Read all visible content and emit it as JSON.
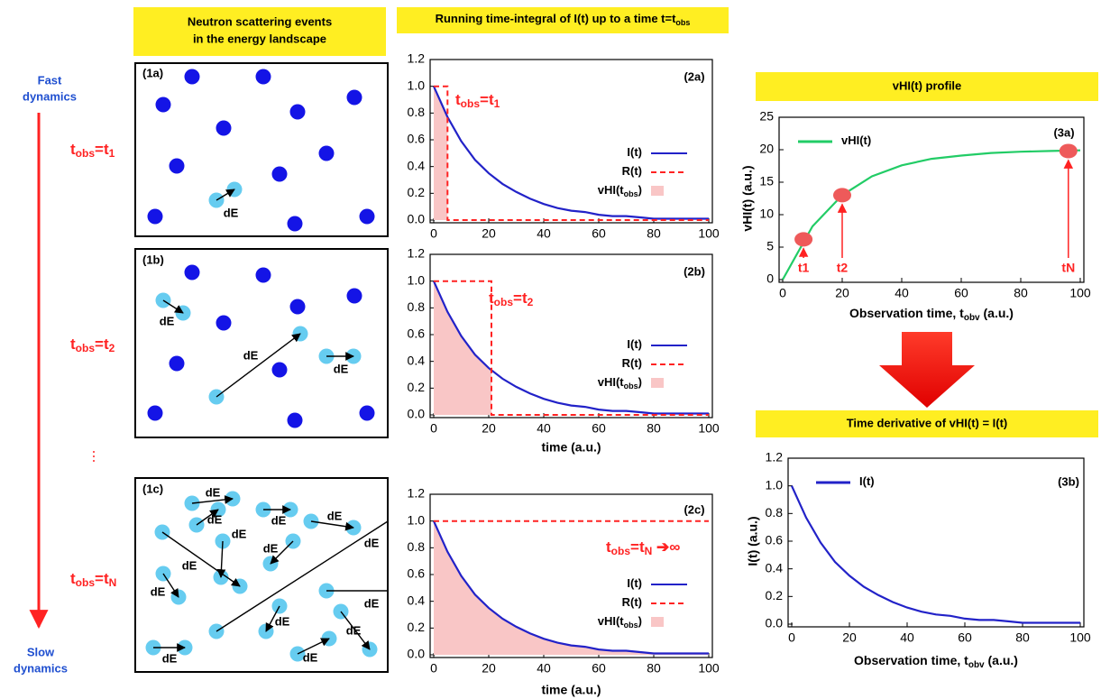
{
  "left": {
    "fast_label": [
      "Fast",
      "dynamics"
    ],
    "slow_label": [
      "Slow",
      "dynamics"
    ],
    "tobs_labels": [
      [
        {
          "t": "t"
        },
        {
          "s": "obs"
        },
        {
          "t": "=t"
        },
        {
          "s": "1"
        }
      ],
      [
        {
          "t": "t"
        },
        {
          "s": "obs"
        },
        {
          "t": "=t"
        },
        {
          "s": "2"
        }
      ],
      [
        {
          "t": "t"
        },
        {
          "s": "obs"
        },
        {
          "t": "=t"
        },
        {
          "s": "N"
        }
      ]
    ]
  },
  "headers": {
    "scattering": [
      "Neutron scattering events",
      "in the energy landscape"
    ],
    "integral": [
      {
        "t": "Running time-integral of I(t) up to a time t=t"
      },
      {
        "s": "obs"
      }
    ],
    "profile": "vHI(t) profile",
    "derivative": "Time derivative of vHI(t) = I(t)"
  },
  "diagram": {
    "panels": [
      "(1a)",
      "(1b)",
      "(1c)"
    ],
    "dE_label": "dE"
  },
  "chart_data": [
    {
      "type": "line",
      "panel_label": "(2a)",
      "annotation": [
        {
          "t": "t"
        },
        {
          "s": "obs"
        },
        {
          "t": "=t"
        },
        {
          "s": "1"
        }
      ],
      "xlim": [
        0,
        100
      ],
      "xticks": [
        0,
        20,
        40,
        60,
        80,
        100
      ],
      "ylim": [
        0,
        1.2
      ],
      "yticks": [
        {
          "value": 0,
          "label": "0.0"
        },
        0.2,
        0.4,
        0.6,
        0.8,
        {
          "value": 1,
          "label": "1.0"
        },
        1.2
      ],
      "legend": "center right",
      "series": [
        {
          "name": [
            {
              "t": "I(t)"
            }
          ],
          "color": "#2222c8",
          "style": "solid",
          "x": [
            0,
            5,
            10,
            15,
            20,
            25,
            30,
            35,
            40,
            45,
            50,
            55,
            60,
            65,
            70,
            75,
            80,
            85,
            90,
            95,
            100
          ],
          "values": [
            1,
            0.77,
            0.59,
            0.45,
            0.35,
            0.27,
            0.21,
            0.16,
            0.12,
            0.09,
            0.07,
            0.06,
            0.04,
            0.03,
            0.03,
            0.02,
            0.01,
            0.01,
            0.01,
            0.01,
            0.01
          ]
        },
        {
          "name": [
            {
              "t": "R(t)"
            }
          ],
          "color": "#ff2222",
          "style": "dashed",
          "x": [
            0,
            5,
            5,
            100
          ],
          "values": [
            1,
            1,
            0,
            0
          ]
        },
        {
          "name": [
            {
              "t": "vHI(t"
            },
            {
              "s": "obs"
            },
            {
              "t": ")"
            }
          ],
          "color": "#f9c6c6",
          "style": "area",
          "x": [
            0,
            5
          ],
          "values": [
            1,
            0.77
          ]
        }
      ]
    },
    {
      "type": "line",
      "panel_label": "(2b)",
      "annotation": [
        {
          "t": "t"
        },
        {
          "s": "obs"
        },
        {
          "t": "=t"
        },
        {
          "s": "2"
        }
      ],
      "xlabel": "time (a.u.)",
      "xlim": [
        0,
        100
      ],
      "xticks": [
        0,
        20,
        40,
        60,
        80,
        100
      ],
      "ylim": [
        0,
        1.2
      ],
      "yticks": [
        {
          "value": 0,
          "label": "0.0"
        },
        0.2,
        0.4,
        0.6,
        0.8,
        {
          "value": 1,
          "label": "1.0"
        },
        1.2
      ],
      "legend": "center right",
      "series": [
        {
          "name": [
            {
              "t": "I(t)"
            }
          ],
          "color": "#2222c8",
          "style": "solid",
          "x": [
            0,
            5,
            10,
            15,
            20,
            25,
            30,
            35,
            40,
            45,
            50,
            55,
            60,
            65,
            70,
            75,
            80,
            85,
            90,
            95,
            100
          ],
          "values": [
            1,
            0.77,
            0.59,
            0.45,
            0.35,
            0.27,
            0.21,
            0.16,
            0.12,
            0.09,
            0.07,
            0.06,
            0.04,
            0.03,
            0.03,
            0.02,
            0.01,
            0.01,
            0.01,
            0.01,
            0.01
          ]
        },
        {
          "name": [
            {
              "t": "R(t)"
            }
          ],
          "color": "#ff2222",
          "style": "dashed",
          "x": [
            0,
            21,
            21,
            100
          ],
          "values": [
            1,
            1,
            0,
            0
          ]
        },
        {
          "name": [
            {
              "t": "vHI(t"
            },
            {
              "s": "obs"
            },
            {
              "t": ")"
            }
          ],
          "color": "#f9c6c6",
          "style": "area",
          "x": [
            0,
            5,
            10,
            15,
            20,
            21
          ],
          "values": [
            1,
            0.77,
            0.59,
            0.45,
            0.35,
            0.33
          ]
        }
      ]
    },
    {
      "type": "line",
      "panel_label": "(2c)",
      "annotation": [
        {
          "t": "t"
        },
        {
          "s": "obs"
        },
        {
          "t": "=t"
        },
        {
          "s": "N"
        },
        {
          "t": " ➔∞"
        }
      ],
      "xlabel": "time (a.u.)",
      "xlim": [
        0,
        100
      ],
      "xticks": [
        0,
        20,
        40,
        60,
        80,
        100
      ],
      "ylim": [
        0,
        1.2
      ],
      "yticks": [
        {
          "value": 0,
          "label": "0.0"
        },
        0.2,
        0.4,
        0.6,
        0.8,
        {
          "value": 1,
          "label": "1.0"
        },
        1.2
      ],
      "legend": "center right",
      "series": [
        {
          "name": [
            {
              "t": "I(t)"
            }
          ],
          "color": "#2222c8",
          "style": "solid",
          "x": [
            0,
            5,
            10,
            15,
            20,
            25,
            30,
            35,
            40,
            45,
            50,
            55,
            60,
            65,
            70,
            75,
            80,
            85,
            90,
            95,
            100
          ],
          "values": [
            1,
            0.77,
            0.59,
            0.45,
            0.35,
            0.27,
            0.21,
            0.16,
            0.12,
            0.09,
            0.07,
            0.06,
            0.04,
            0.03,
            0.03,
            0.02,
            0.01,
            0.01,
            0.01,
            0.01,
            0.01
          ]
        },
        {
          "name": [
            {
              "t": "R(t)"
            }
          ],
          "color": "#ff2222",
          "style": "dashed",
          "x": [
            0,
            100
          ],
          "values": [
            1,
            1
          ]
        },
        {
          "name": [
            {
              "t": "vHI(t"
            },
            {
              "s": "obs"
            },
            {
              "t": ")"
            }
          ],
          "color": "#f9c6c6",
          "style": "area",
          "x": [
            0,
            5,
            10,
            15,
            20,
            25,
            30,
            35,
            40,
            45,
            50,
            55,
            60,
            65,
            70,
            75,
            80,
            85,
            90,
            95,
            100
          ],
          "values": [
            1,
            0.77,
            0.59,
            0.45,
            0.35,
            0.27,
            0.21,
            0.16,
            0.12,
            0.09,
            0.07,
            0.06,
            0.04,
            0.03,
            0.03,
            0.02,
            0.01,
            0.01,
            0.01,
            0.01,
            0.01
          ]
        }
      ]
    },
    {
      "type": "line",
      "panel_label": "(3a)",
      "ylabel": "vHI(t) (a.u.)",
      "xlabel": [
        {
          "t": "Observation time, t"
        },
        {
          "s": "obv"
        },
        {
          "t": " (a.u.)"
        }
      ],
      "xlim": [
        0,
        100
      ],
      "xticks": [
        0,
        20,
        40,
        60,
        80,
        100
      ],
      "ylim": [
        0,
        25
      ],
      "yticks": [
        0,
        5,
        10,
        15,
        20,
        25
      ],
      "legend": "upper left",
      "series": [
        {
          "name": [
            {
              "t": "vHI(t)"
            }
          ],
          "color": "#22cc66",
          "style": "solid",
          "x": [
            0,
            10,
            20,
            30,
            40,
            50,
            60,
            70,
            80,
            90,
            100
          ],
          "values": [
            0,
            8.2,
            13,
            15.9,
            17.6,
            18.6,
            19.1,
            19.5,
            19.7,
            19.8,
            19.9
          ]
        }
      ],
      "marker_color": "#ee5a5a",
      "arrow_color": "#ff2222",
      "markers": [
        {
          "label": "t1",
          "x": 7,
          "y": 6.2
        },
        {
          "label": "t2",
          "x": 20,
          "y": 13
        },
        {
          "label": "tN",
          "x": 96,
          "y": 19.8
        }
      ]
    },
    {
      "type": "line",
      "panel_label": "(3b)",
      "ylabel": "I(t) (a.u.)",
      "xlabel": [
        {
          "t": "Observation time, t"
        },
        {
          "s": "obv"
        },
        {
          "t": " (a.u.)"
        }
      ],
      "xlim": [
        0,
        100
      ],
      "xticks": [
        0,
        20,
        40,
        60,
        80,
        100
      ],
      "ylim": [
        0,
        1.2
      ],
      "yticks": [
        {
          "value": 0,
          "label": "0.0"
        },
        0.2,
        0.4,
        0.6,
        0.8,
        {
          "value": 1,
          "label": "1.0"
        },
        1.2
      ],
      "legend": "upper left",
      "series": [
        {
          "name": [
            {
              "t": "I(t)"
            }
          ],
          "color": "#2222c8",
          "style": "solid",
          "x": [
            0,
            5,
            10,
            15,
            20,
            25,
            30,
            35,
            40,
            45,
            50,
            55,
            60,
            65,
            70,
            75,
            80,
            85,
            90,
            95,
            100
          ],
          "values": [
            1,
            0.77,
            0.59,
            0.45,
            0.35,
            0.27,
            0.21,
            0.16,
            0.12,
            0.09,
            0.07,
            0.06,
            0.04,
            0.03,
            0.03,
            0.02,
            0.01,
            0.01,
            0.01,
            0.01,
            0.01
          ]
        }
      ]
    }
  ]
}
